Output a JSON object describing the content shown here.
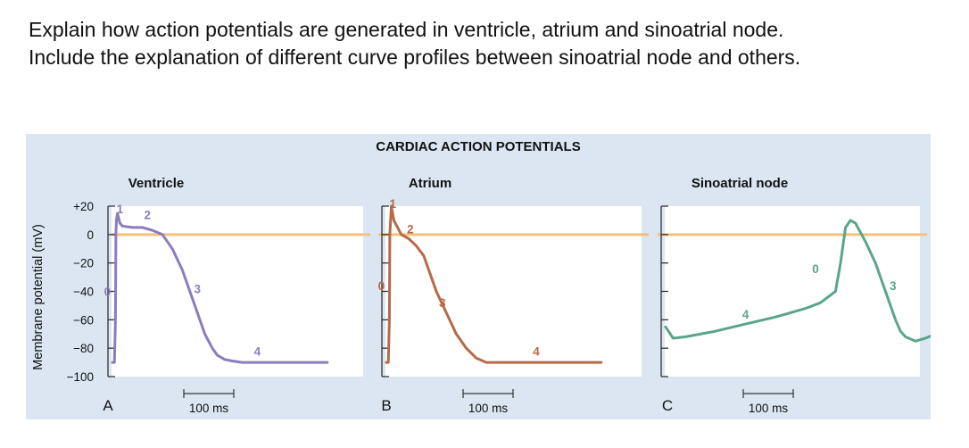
{
  "question": {
    "line1": "Explain how action potentials are generated in ventricle, atrium and sinoatrial node.",
    "line2": "Include the explanation of different curve profiles between sinoatrial node and others."
  },
  "colors": {
    "panel_background": "#dbe6f2",
    "plot_background": "#ffffff",
    "zero_line": "#f5c07a",
    "ventricle": "#8d7cbd",
    "atrium": "#b66a47",
    "sinoatrial": "#5aa58b",
    "axis": "#333333"
  },
  "chart_data": {
    "type": "line",
    "title": "CARDIAC ACTION POTENTIALS",
    "ylabel": "Membrane potential (mV)",
    "yticks": [
      "+20",
      "0",
      "−20",
      "−40",
      "−60",
      "−80",
      "−100"
    ],
    "ylim": [
      -100,
      20
    ],
    "scale_bar_label": "100 ms",
    "scale_bar_ms": 100,
    "reference_line_mV": 0,
    "panels": [
      {
        "letter": "A",
        "name": "Ventricle",
        "color_key": "ventricle",
        "x_ms": [
          0,
          4,
          6,
          7,
          8,
          10,
          15,
          20,
          40,
          60,
          80,
          100,
          120,
          140,
          155,
          170,
          185,
          200,
          210,
          225,
          240,
          260,
          290,
          330,
          380,
          430
        ],
        "mV": [
          -90,
          -90,
          -60,
          0,
          10,
          15,
          8,
          6,
          5,
          5,
          3,
          0,
          -10,
          -25,
          -40,
          -55,
          -70,
          -80,
          -85,
          -88,
          -89,
          -90,
          -90,
          -90,
          -90,
          -90
        ],
        "phase_labels": [
          {
            "text": "0",
            "x_ms": -10,
            "mV": -40
          },
          {
            "text": "1",
            "x_ms": 15,
            "mV": 18
          },
          {
            "text": "2",
            "x_ms": 70,
            "mV": 14
          },
          {
            "text": "3",
            "x_ms": 170,
            "mV": -38
          },
          {
            "text": "4",
            "x_ms": 290,
            "mV": -82
          }
        ]
      },
      {
        "letter": "B",
        "name": "Atrium",
        "color_key": "atrium",
        "x_ms": [
          0,
          4,
          6,
          7,
          10,
          15,
          30,
          45,
          60,
          75,
          90,
          100,
          120,
          140,
          160,
          180,
          200,
          215,
          240,
          280,
          330,
          380,
          430
        ],
        "mV": [
          -90,
          -90,
          -60,
          0,
          20,
          10,
          0,
          -3,
          -8,
          -15,
          -30,
          -40,
          -55,
          -70,
          -80,
          -87,
          -90,
          -90,
          -90,
          -90,
          -90,
          -90,
          -90
        ],
        "phase_labels": [
          {
            "text": "0",
            "x_ms": -10,
            "mV": -36
          },
          {
            "text": "1",
            "x_ms": 13,
            "mV": 22
          },
          {
            "text": "2",
            "x_ms": 48,
            "mV": 4
          },
          {
            "text": "3",
            "x_ms": 112,
            "mV": -48
          },
          {
            "text": "4",
            "x_ms": 300,
            "mV": -82
          }
        ]
      },
      {
        "letter": "C",
        "name": "Sinoatrial node",
        "color_key": "sinoatrial",
        "x_ms": [
          0,
          15,
          40,
          100,
          160,
          220,
          280,
          310,
          340,
          350,
          360,
          370,
          380,
          400,
          420,
          440,
          460,
          470,
          480,
          500,
          520,
          540
        ],
        "mV": [
          -65,
          -73,
          -72,
          -68,
          -63,
          -58,
          -52,
          -48,
          -40,
          -20,
          5,
          10,
          8,
          -5,
          -20,
          -40,
          -60,
          -68,
          -72,
          -75,
          -73,
          -70
        ],
        "phase_labels": [
          {
            "text": "0",
            "x_ms": 300,
            "mV": -24
          },
          {
            "text": "3",
            "x_ms": 455,
            "mV": -36
          },
          {
            "text": "4",
            "x_ms": 160,
            "mV": -56
          }
        ]
      }
    ]
  }
}
